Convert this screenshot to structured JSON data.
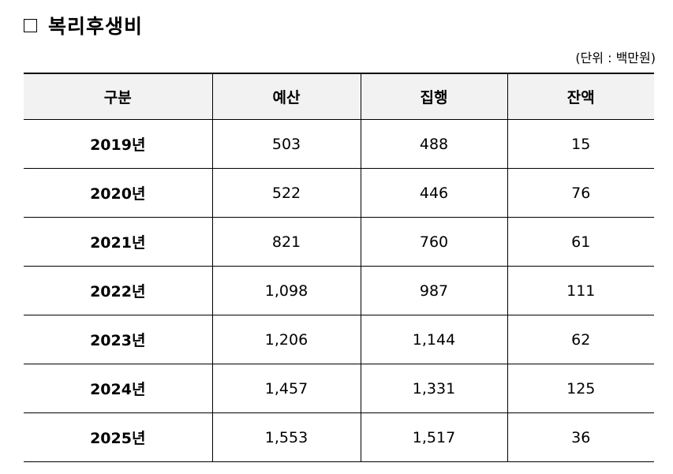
{
  "title": {
    "icon": "empty-square-icon",
    "text": "복리후생비"
  },
  "unit_note": "(단위 : 백만원)",
  "table": {
    "headers": [
      "구분",
      "예산",
      "집행",
      "잔액"
    ],
    "rows": [
      [
        "2019년",
        "503",
        "488",
        "15"
      ],
      [
        "2020년",
        "522",
        "446",
        "76"
      ],
      [
        "2021년",
        "821",
        "760",
        "61"
      ],
      [
        "2022년",
        "1,098",
        "987",
        "111"
      ],
      [
        "2023년",
        "1,206",
        "1,144",
        "62"
      ],
      [
        "2024년",
        "1,457",
        "1,331",
        "125"
      ],
      [
        "2025년",
        "1,553",
        "1,517",
        "36"
      ]
    ]
  }
}
